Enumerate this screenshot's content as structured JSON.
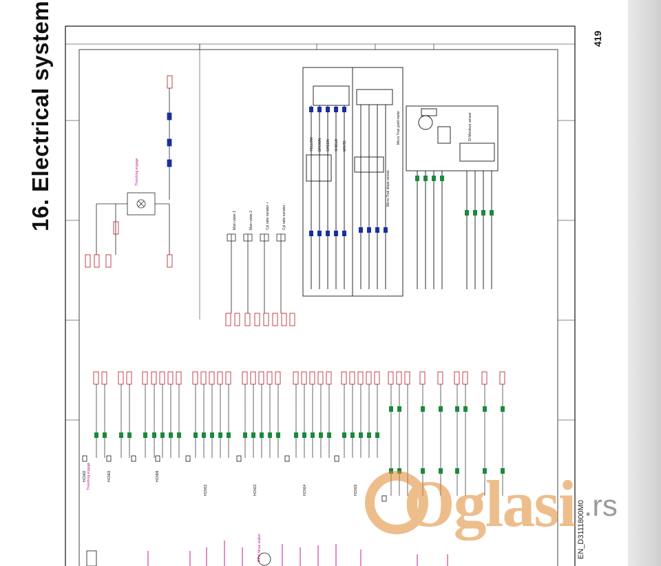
{
  "page": {
    "section_title": "16. Electrical system",
    "page_number": "419",
    "doc_code": "EN_D3111800M0",
    "watermark": {
      "brand": "Oglasi",
      "tld": ".rs"
    }
  },
  "schematic": {
    "colors": {
      "frame": "#111111",
      "wire": "#222222",
      "red_label": "#c41818",
      "green_label": "#1a8a3a",
      "blue_label": "#1a2f9e",
      "magenta_label": "#c0188e",
      "connector": "#b3151e"
    },
    "upper_labels": {
      "threshing_engage": "Threshing engage",
      "main_valve_1": "Main valve 1",
      "main_valve_2": "Main valve 2",
      "cyl_valve_plus": "Cyl.ratio variator +",
      "cyl_valve_minus": "Cyl.ratio variator -",
      "moisture_sensor": "DI Moisture sensor",
      "yield_meter": "Micro Trak yield meter",
      "slope_sensor": "Micro Trak slope sensor"
    },
    "wire_colors": [
      "YELLOW",
      "BROWN",
      "GREEN",
      "SHIELD",
      "WHITE",
      "YELLOW/GREEN"
    ],
    "lower_labels": {
      "hcn02": "HCN02",
      "hcn03": "HCN03",
      "hcn09": "HCN09",
      "hcn12": "HCN12",
      "hcn13": "HCN13",
      "hcn14": "HCN14",
      "hcn15": "HCN15",
      "threshing_engage_lower": "Threshing engage",
      "rpm_straw_walker": "RPM Straw walker"
    }
  }
}
